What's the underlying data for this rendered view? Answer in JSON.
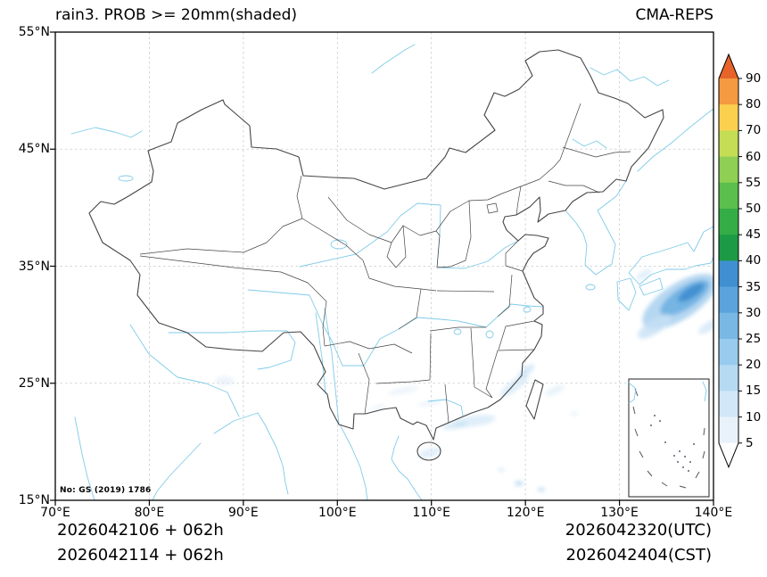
{
  "header": {
    "title": "rain3. PROB >= 20mm(shaded)",
    "model": "CMA-REPS"
  },
  "axes": {
    "lat_ticks": [
      "55°N",
      "45°N",
      "35°N",
      "25°N",
      "15°N"
    ],
    "lon_ticks": [
      "70°E",
      "80°E",
      "90°E",
      "100°E",
      "110°E",
      "120°E",
      "130°E",
      "140°E"
    ]
  },
  "colorbar": {
    "tick_labels": [
      "90",
      "80",
      "70",
      "60",
      "55",
      "50",
      "45",
      "40",
      "35",
      "30",
      "25",
      "20",
      "15",
      "10",
      "5"
    ],
    "segment_colors_top_to_bottom": [
      "#e8632a",
      "#f59a41",
      "#fcd04f",
      "#c4dd55",
      "#8ecf54",
      "#5abf4d",
      "#35ad47",
      "#1d9a45",
      "#3f8fd1",
      "#5ba3dc",
      "#79b8e5",
      "#98cbed",
      "#b6daf2",
      "#d2e7f7",
      "#e9f2fa",
      "#ffffff"
    ]
  },
  "map": {
    "watermark": "No: GS (2019) 1786",
    "boundary_color": "#454545",
    "river_color": "#7fcbe8",
    "grid_color": "#c9c9c9"
  },
  "footer": {
    "left_line1": "2026042106 + 062h",
    "left_line2": "2026042114 + 062h",
    "right_line1": "2026042320(UTC)",
    "right_line2": "2026042404(CST)"
  },
  "chart_data": {
    "type": "heatmap",
    "title": "rain3. PROB >= 20mm(shaded)",
    "model": "CMA-REPS",
    "variable": "probability of 3h rain >= 20mm (%)",
    "lead_hour": "062h",
    "init_time_utc": "2026042106",
    "init_time_cst": "2026042114",
    "valid_time_utc": "2026042320(UTC)",
    "valid_time_cst": "2026042404(CST)",
    "lon_range": [
      70,
      140
    ],
    "lat_range": [
      15,
      55
    ],
    "prob_levels_percent": [
      5,
      10,
      15,
      20,
      25,
      30,
      35,
      40,
      45,
      50,
      55,
      60,
      70,
      80,
      90
    ],
    "shaded_regions": [
      {
        "area": "western Pacific near 136-140E, 29-34N",
        "max_prob_percent": 40
      },
      {
        "area": "Fujian / Zhejiang coastal strip",
        "max_prob_percent": 15
      },
      {
        "area": "Guangdong coast and Pearl River Delta",
        "max_prob_percent": 15
      },
      {
        "area": "Leizhou Peninsula / Hainan vicinity",
        "max_prob_percent": 10
      },
      {
        "area": "Guizhou-Guangxi scattered streaks",
        "max_prob_percent": 10
      },
      {
        "area": "cells south of Taiwan (Luzon Strait)",
        "max_prob_percent": 15
      },
      {
        "area": "patch near 88E, 25N (NE India / Himalaya foothills)",
        "max_prob_percent": 10
      }
    ]
  }
}
